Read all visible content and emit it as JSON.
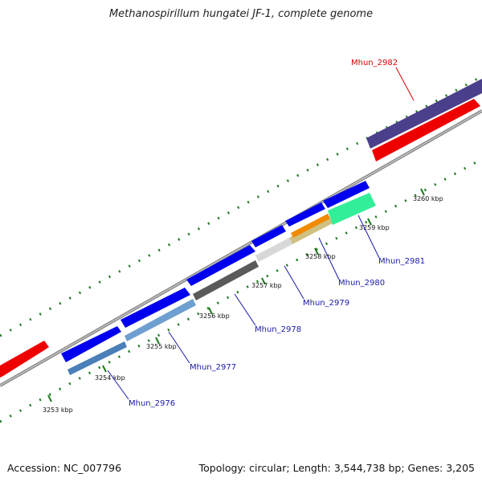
{
  "title": "Methanospirillum hungatei JF-1, complete genome",
  "footer": {
    "accession": "Accession: NC_007796",
    "summary": "Topology: circular; Length: 3,544,738 bp; Genes: 3,205"
  },
  "colors": {
    "forward_gene": "#0000ee",
    "reverse_gene": "#ee0000",
    "label_forward": "#1a1aaa",
    "label_reverse": "#dd0000",
    "backbone": "#8c8c8c",
    "gc_dots": "#1f7a1f"
  },
  "ticks": [
    {
      "label": "3253 kbp"
    },
    {
      "label": "3254 kbp"
    },
    {
      "label": "3255 kbp"
    },
    {
      "label": "3256 kbp"
    },
    {
      "label": "3257 kbp"
    },
    {
      "label": "3258 kbp"
    },
    {
      "label": "3259 kbp"
    },
    {
      "label": "3260 kbp"
    }
  ],
  "genes": [
    {
      "name": "Mhun_2976",
      "strand": "forward"
    },
    {
      "name": "Mhun_2977",
      "strand": "forward"
    },
    {
      "name": "Mhun_2978",
      "strand": "forward"
    },
    {
      "name": "Mhun_2979",
      "strand": "forward"
    },
    {
      "name": "Mhun_2980",
      "strand": "forward"
    },
    {
      "name": "Mhun_2981",
      "strand": "forward"
    },
    {
      "name": "Mhun_2982",
      "strand": "reverse"
    }
  ]
}
